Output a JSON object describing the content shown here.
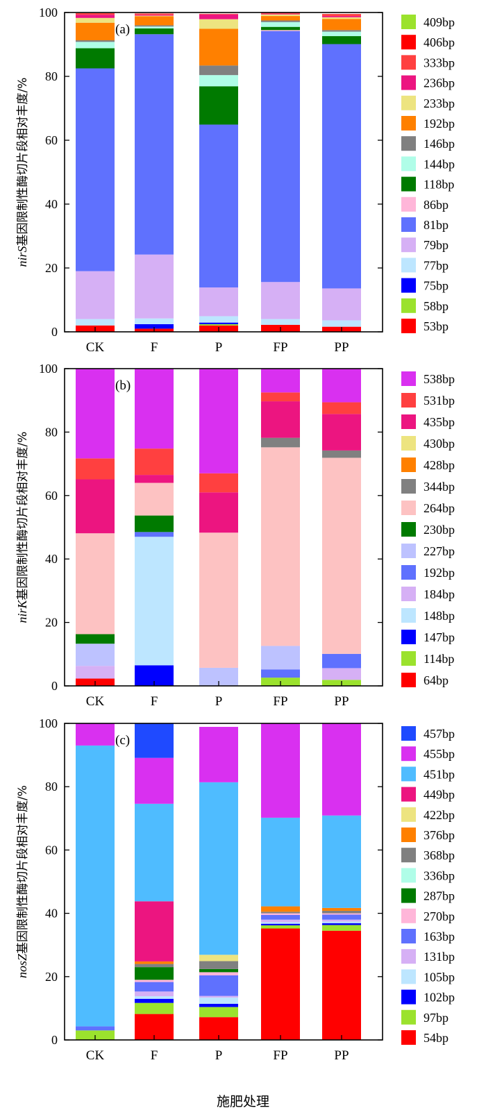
{
  "figure": {
    "xlabel": "施肥处理"
  },
  "chart_data": [
    {
      "type": "bar",
      "stacked": true,
      "panel_label": "(a)",
      "title": "",
      "gene": "nirS",
      "ylabel_suffix": "基因限制性酶切片段相对丰度/%",
      "xlabel": "",
      "ylim": [
        0,
        100
      ],
      "yticks": [
        0,
        20,
        40,
        60,
        80,
        100
      ],
      "categories": [
        "CK",
        "F",
        "P",
        "FP",
        "PP"
      ],
      "legend_position": "right",
      "series": [
        {
          "name": "53bp",
          "color": "#ff0000",
          "values": [
            2.0,
            1.0,
            2.0,
            2.2,
            1.6
          ]
        },
        {
          "name": "58bp",
          "color": "#9be22d",
          "values": [
            0,
            0,
            0.4,
            0,
            0
          ]
        },
        {
          "name": "75bp",
          "color": "#0000ff",
          "values": [
            0,
            1.4,
            0.5,
            0,
            0
          ]
        },
        {
          "name": "77bp",
          "color": "#bde6ff",
          "values": [
            2.0,
            1.8,
            2.0,
            1.8,
            2.0
          ]
        },
        {
          "name": "79bp",
          "color": "#d6b0f5",
          "values": [
            15.0,
            20.0,
            9.0,
            11.6,
            10.0
          ]
        },
        {
          "name": "81bp",
          "color": "#5f71fe",
          "values": [
            63.5,
            69.0,
            51.0,
            78.6,
            76.5
          ]
        },
        {
          "name": "86bp",
          "color": "#ffb6d9",
          "values": [
            0,
            0,
            0,
            0.3,
            0
          ]
        },
        {
          "name": "118bp",
          "color": "#007a00",
          "values": [
            6.3,
            1.8,
            12.0,
            1.0,
            2.5
          ]
        },
        {
          "name": "144bp",
          "color": "#b0fde8",
          "values": [
            2.0,
            0.6,
            3.5,
            1.5,
            1.4
          ]
        },
        {
          "name": "146bp",
          "color": "#808080",
          "values": [
            0.5,
            0.4,
            3.0,
            0.5,
            0.5
          ]
        },
        {
          "name": "192bp",
          "color": "#ff8000",
          "values": [
            5.5,
            2.8,
            11.5,
            1.4,
            3.5
          ]
        },
        {
          "name": "233bp",
          "color": "#ede480",
          "values": [
            1.5,
            0.2,
            3.0,
            0.5,
            0.5
          ]
        },
        {
          "name": "236bp",
          "color": "#ec1580",
          "values": [
            1.0,
            0.3,
            1.5,
            0.2,
            0.4
          ]
        },
        {
          "name": "333bp",
          "color": "#ff4040",
          "values": [
            0.5,
            0.4,
            0.2,
            0.3,
            0.4
          ]
        },
        {
          "name": "406bp",
          "color": "#ff0000",
          "values": [
            0,
            0,
            0,
            0,
            0.2
          ]
        },
        {
          "name": "409bp",
          "color": "#9be22d",
          "values": [
            0,
            0,
            0,
            0,
            0
          ]
        }
      ]
    },
    {
      "type": "bar",
      "stacked": true,
      "panel_label": "(b)",
      "title": "",
      "gene": "nirK",
      "ylabel_suffix": "基因限制性酶切片段相对丰度/%",
      "xlabel": "",
      "ylim": [
        0,
        100
      ],
      "yticks": [
        0,
        20,
        40,
        60,
        80,
        100
      ],
      "categories": [
        "CK",
        "F",
        "P",
        "FP",
        "PP"
      ],
      "legend_position": "right",
      "series": [
        {
          "name": "64bp",
          "color": "#ff0000",
          "values": [
            2.3,
            0,
            0,
            0,
            0
          ]
        },
        {
          "name": "114bp",
          "color": "#9be22d",
          "values": [
            0,
            0,
            0,
            2.6,
            1.9
          ]
        },
        {
          "name": "147bp",
          "color": "#0000ff",
          "values": [
            0,
            6.5,
            0,
            0,
            0
          ]
        },
        {
          "name": "148bp",
          "color": "#bde6ff",
          "values": [
            0,
            40.5,
            0,
            0,
            0
          ]
        },
        {
          "name": "184bp",
          "color": "#d6b0f5",
          "values": [
            4.0,
            0,
            0,
            0,
            3.7
          ]
        },
        {
          "name": "192bp",
          "color": "#5f71fe",
          "values": [
            0,
            1.5,
            0,
            2.6,
            4.5
          ]
        },
        {
          "name": "227bp",
          "color": "#bdc2ff",
          "values": [
            7.0,
            0,
            5.7,
            7.4,
            0
          ]
        },
        {
          "name": "230bp",
          "color": "#007a00",
          "values": [
            3.0,
            5.2,
            0,
            0,
            0
          ]
        },
        {
          "name": "264bp",
          "color": "#fdc2c2",
          "values": [
            31.8,
            10.3,
            42.6,
            62.6,
            61.8
          ]
        },
        {
          "name": "344bp",
          "color": "#808080",
          "values": [
            0,
            0,
            0,
            3.0,
            2.3
          ]
        },
        {
          "name": "428bp",
          "color": "#ff8000",
          "values": [
            0,
            0,
            0,
            0,
            0
          ]
        },
        {
          "name": "430bp",
          "color": "#ede480",
          "values": [
            0,
            0,
            0,
            0,
            0
          ]
        },
        {
          "name": "435bp",
          "color": "#ec1580",
          "values": [
            17.0,
            2.5,
            12.7,
            11.5,
            11.5
          ]
        },
        {
          "name": "531bp",
          "color": "#ff4040",
          "values": [
            6.6,
            8.3,
            6.0,
            2.8,
            3.7
          ]
        },
        {
          "name": "538bp",
          "color": "#d930f0",
          "values": [
            28.3,
            25.2,
            33.0,
            7.5,
            10.6
          ]
        }
      ]
    },
    {
      "type": "bar",
      "stacked": true,
      "panel_label": "(c)",
      "title": "",
      "gene": "nosZ",
      "ylabel_suffix": "基因限制性酶切片段相对丰度/%",
      "xlabel": "",
      "ylim": [
        0,
        100
      ],
      "yticks": [
        0,
        20,
        40,
        60,
        80,
        100
      ],
      "categories": [
        "CK",
        "F",
        "P",
        "FP",
        "PP"
      ],
      "legend_position": "right",
      "series": [
        {
          "name": "54bp",
          "color": "#ff0000",
          "values": [
            0,
            8.2,
            7.2,
            35.2,
            34.5
          ]
        },
        {
          "name": "97bp",
          "color": "#9be22d",
          "values": [
            3.0,
            3.5,
            3.2,
            1.0,
            1.8
          ]
        },
        {
          "name": "102bp",
          "color": "#0000ff",
          "values": [
            0,
            1.3,
            1.0,
            0.5,
            0.6
          ]
        },
        {
          "name": "105bp",
          "color": "#bde6ff",
          "values": [
            0,
            0.8,
            2.0,
            0.5,
            0.5
          ]
        },
        {
          "name": "131bp",
          "color": "#d6b0f5",
          "values": [
            0,
            1.5,
            0.5,
            0.8,
            0.6
          ]
        },
        {
          "name": "163bp",
          "color": "#5f71fe",
          "values": [
            1.3,
            3.0,
            6.5,
            1.5,
            1.6
          ]
        },
        {
          "name": "270bp",
          "color": "#ffb6d9",
          "values": [
            0,
            0.7,
            1.0,
            0.5,
            0.4
          ]
        },
        {
          "name": "287bp",
          "color": "#007a00",
          "values": [
            0,
            4.0,
            1.0,
            0,
            0
          ]
        },
        {
          "name": "336bp",
          "color": "#b0fde8",
          "values": [
            0,
            0,
            0,
            0,
            0
          ]
        },
        {
          "name": "368bp",
          "color": "#808080",
          "values": [
            0,
            1.0,
            2.5,
            0.5,
            0.8
          ]
        },
        {
          "name": "376bp",
          "color": "#ff8000",
          "values": [
            0,
            0.8,
            0,
            1.7,
            0.9
          ]
        },
        {
          "name": "422bp",
          "color": "#ede480",
          "values": [
            0,
            0,
            2.0,
            0,
            0
          ]
        },
        {
          "name": "449bp",
          "color": "#ec1580",
          "values": [
            0,
            19.0,
            0,
            0,
            0
          ]
        },
        {
          "name": "451bp",
          "color": "#4fbcff",
          "values": [
            88.7,
            30.8,
            54.5,
            28.0,
            29.2
          ]
        },
        {
          "name": "455bp",
          "color": "#d930f0",
          "values": [
            7.0,
            14.5,
            17.5,
            29.8,
            29.1
          ]
        },
        {
          "name": "457bp",
          "color": "#1f4aff",
          "values": [
            0,
            11.0,
            0,
            0,
            0
          ]
        }
      ]
    }
  ]
}
